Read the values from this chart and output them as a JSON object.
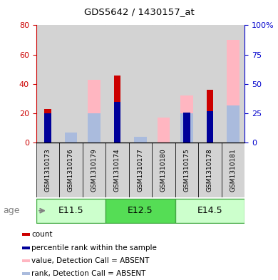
{
  "title": "GDS5642 / 1430157_at",
  "samples": [
    "GSM1310173",
    "GSM1310176",
    "GSM1310179",
    "GSM1310174",
    "GSM1310177",
    "GSM1310180",
    "GSM1310175",
    "GSM1310178",
    "GSM1310181"
  ],
  "age_groups": [
    {
      "label": "E11.5",
      "start": 0,
      "end": 3
    },
    {
      "label": "E12.5",
      "start": 3,
      "end": 6
    },
    {
      "label": "E14.5",
      "start": 6,
      "end": 9
    }
  ],
  "count": [
    23,
    0,
    0,
    46,
    0,
    0,
    0,
    36,
    0
  ],
  "percentile_rank": [
    25,
    0,
    0,
    35,
    0,
    0,
    26,
    27,
    0
  ],
  "absent_value": [
    0,
    3,
    43,
    0,
    0,
    17,
    32,
    0,
    70
  ],
  "absent_rank": [
    0,
    9,
    25,
    0,
    5,
    0,
    25,
    0,
    32
  ],
  "left_ylim": [
    0,
    80
  ],
  "right_ylim": [
    0,
    100
  ],
  "left_yticks": [
    0,
    20,
    40,
    60,
    80
  ],
  "right_yticks": [
    0,
    25,
    50,
    75,
    100
  ],
  "right_yticklabels": [
    "0",
    "25",
    "50",
    "75",
    "100%"
  ],
  "left_ycolor": "#CC0000",
  "right_ycolor": "#0000CC",
  "count_color": "#CC0000",
  "percentile_color": "#000099",
  "absent_value_color": "#FFB6C1",
  "absent_rank_color": "#AABBDD",
  "col_bg_color": "#D3D3D3",
  "age_light_color": "#CCFFCC",
  "age_dark_color": "#55DD55",
  "age_border_color": "#44AA44",
  "legend_items": [
    {
      "label": "count",
      "color": "#CC0000"
    },
    {
      "label": "percentile rank within the sample",
      "color": "#000099"
    },
    {
      "label": "value, Detection Call = ABSENT",
      "color": "#FFB6C1"
    },
    {
      "label": "rank, Detection Call = ABSENT",
      "color": "#AABBDD"
    }
  ]
}
